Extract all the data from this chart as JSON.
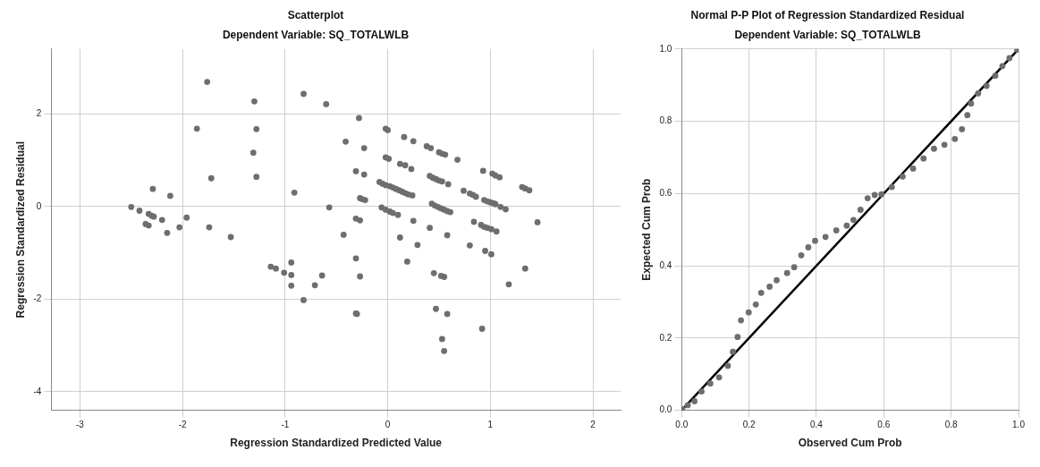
{
  "chart_data": [
    {
      "type": "scatter",
      "title": "Scatterplot",
      "subtitle": "Dependent Variable: SQ_TOTALWLB",
      "xlabel": "Regression Standardized Predicted Value",
      "ylabel": "Regression Standardized Residual",
      "color": "#6e6e6e",
      "marker": "circle",
      "grid": true,
      "xlim": [
        -3.28,
        2.27
      ],
      "ylim": [
        -4.4,
        3.4
      ],
      "xticks": [
        -3,
        -2,
        -1,
        0,
        1,
        2
      ],
      "yticks": [
        -4,
        -2,
        0,
        2
      ],
      "x": [
        -2.5,
        -2.42,
        -2.29,
        -2.12,
        -2.33,
        -2.3,
        -2.28,
        -2.2,
        -2.36,
        -2.33,
        -2.15,
        -2.03,
        -1.96,
        -1.76,
        -1.86,
        -1.72,
        -1.74,
        -1.53,
        -1.3,
        -1.28,
        -1.31,
        -1.28,
        -0.82,
        -0.6,
        -0.41,
        -0.91,
        -0.57,
        -0.43,
        -1.14,
        -1.09,
        -1.01,
        -0.94,
        -0.94,
        -0.94,
        -0.71,
        -0.64,
        -0.82,
        -0.28,
        -0.23,
        -0.31,
        -0.23,
        -0.27,
        -0.25,
        -0.22,
        -0.31,
        -0.27,
        -0.31,
        -0.27,
        -0.31,
        -0.3,
        -0.02,
        0.0,
        -0.02,
        0.01,
        0.16,
        0.25,
        0.12,
        0.17,
        0.23,
        0.38,
        0.42,
        0.5,
        0.53,
        0.56,
        0.68,
        -0.08,
        -0.05,
        -0.02,
        0.02,
        0.05,
        0.08,
        0.11,
        0.14,
        0.17,
        0.2,
        0.24,
        -0.06,
        -0.02,
        0.02,
        0.05,
        0.1,
        0.25,
        0.12,
        0.29,
        0.19,
        0.41,
        0.45,
        0.52,
        0.55,
        0.47,
        0.58,
        0.53,
        0.55,
        0.92,
        0.41,
        0.44,
        0.47,
        0.5,
        0.53,
        0.59,
        0.43,
        0.46,
        0.49,
        0.52,
        0.55,
        0.58,
        0.61,
        0.58,
        0.74,
        0.8,
        0.83,
        0.86,
        0.93,
        1.02,
        1.05,
        1.09,
        0.94,
        0.97,
        1.0,
        1.03,
        1.05,
        1.1,
        1.15,
        0.84,
        0.91,
        0.94,
        0.97,
        1.01,
        1.06,
        0.8,
        0.95,
        1.01,
        1.31,
        1.34,
        1.38,
        1.46,
        1.34,
        1.18
      ],
      "values": [
        -0.01,
        -0.09,
        0.38,
        0.23,
        -0.16,
        -0.2,
        -0.22,
        -0.29,
        -0.38,
        -0.41,
        -0.57,
        -0.45,
        -0.24,
        2.69,
        1.68,
        0.61,
        -0.45,
        -0.66,
        2.27,
        1.67,
        1.16,
        0.64,
        2.43,
        2.21,
        1.4,
        0.3,
        -0.02,
        -0.61,
        -1.3,
        -1.34,
        -1.43,
        -1.21,
        -1.48,
        -1.71,
        -1.7,
        -1.49,
        -2.02,
        1.91,
        1.26,
        0.76,
        0.69,
        0.18,
        0.16,
        0.14,
        -0.26,
        -0.3,
        -1.12,
        -1.51,
        -2.31,
        -2.32,
        1.68,
        1.65,
        1.06,
        1.03,
        1.5,
        1.41,
        0.92,
        0.89,
        0.81,
        1.3,
        1.26,
        1.17,
        1.14,
        1.12,
        1.01,
        0.53,
        0.49,
        0.46,
        0.44,
        0.41,
        0.38,
        0.35,
        0.32,
        0.29,
        0.26,
        0.24,
        -0.02,
        -0.07,
        -0.11,
        -0.14,
        -0.18,
        -0.31,
        -0.67,
        -0.83,
        -1.19,
        -0.46,
        -1.44,
        -1.5,
        -1.52,
        -2.21,
        -2.32,
        -2.86,
        -3.12,
        -2.64,
        0.66,
        0.62,
        0.59,
        0.56,
        0.54,
        0.48,
        0.06,
        0.02,
        -0.01,
        -0.04,
        -0.07,
        -0.1,
        -0.12,
        -0.62,
        0.34,
        0.28,
        0.25,
        0.21,
        0.77,
        0.71,
        0.67,
        0.63,
        0.14,
        0.11,
        0.09,
        0.07,
        0.05,
        -0.01,
        -0.06,
        -0.33,
        -0.4,
        -0.44,
        -0.46,
        -0.49,
        -0.54,
        -0.84,
        -0.96,
        -1.03,
        0.42,
        0.39,
        0.35,
        -0.34,
        -1.34,
        -1.68
      ]
    },
    {
      "type": "scatter",
      "title": "Normal P-P Plot of Regression Standardized Residual",
      "subtitle": "Dependent Variable: SQ_TOTALWLB",
      "xlabel": "Observed Cum Prob",
      "ylabel": "Expected Cum Prob",
      "marker": "circle",
      "grid": true,
      "xlim": [
        0,
        1
      ],
      "ylim": [
        0,
        1
      ],
      "xticks": [
        {
          "value": 0,
          "label": "0.0"
        },
        0.2,
        0.4,
        0.6,
        0.8,
        {
          "value": 1,
          "label": "1.0"
        }
      ],
      "yticks": [
        {
          "value": 0,
          "label": "0.0"
        },
        0.2,
        0.4,
        0.6,
        0.8,
        {
          "value": 1,
          "label": "1.0"
        }
      ],
      "series": [
        {
          "color": "#6e6e6e",
          "x": [
            0.002,
            0.018,
            0.038,
            0.059,
            0.085,
            0.111,
            0.137,
            0.152,
            0.166,
            0.176,
            0.199,
            0.22,
            0.236,
            0.261,
            0.282,
            0.313,
            0.334,
            0.355,
            0.376,
            0.396,
            0.427,
            0.459,
            0.49,
            0.51,
            0.531,
            0.552,
            0.573,
            0.593,
            0.624,
            0.656,
            0.687,
            0.718,
            0.749,
            0.78,
            0.811,
            0.832,
            0.848,
            0.859,
            0.88,
            0.905,
            0.931,
            0.952,
            0.973,
            0.996
          ],
          "values": [
            0.003,
            0.014,
            0.025,
            0.052,
            0.074,
            0.091,
            0.123,
            0.162,
            0.203,
            0.249,
            0.271,
            0.293,
            0.325,
            0.342,
            0.36,
            0.38,
            0.396,
            0.429,
            0.451,
            0.469,
            0.48,
            0.498,
            0.511,
            0.527,
            0.555,
            0.587,
            0.596,
            0.598,
            0.618,
            0.647,
            0.669,
            0.697,
            0.724,
            0.735,
            0.751,
            0.778,
            0.817,
            0.849,
            0.877,
            0.898,
            0.926,
            0.953,
            0.975,
            0.998
          ]
        },
        {
          "type": "line",
          "color": "#000000",
          "marker": "none",
          "line_style": "solid",
          "x": [
            0,
            1
          ],
          "values": [
            0,
            1
          ]
        }
      ]
    }
  ]
}
